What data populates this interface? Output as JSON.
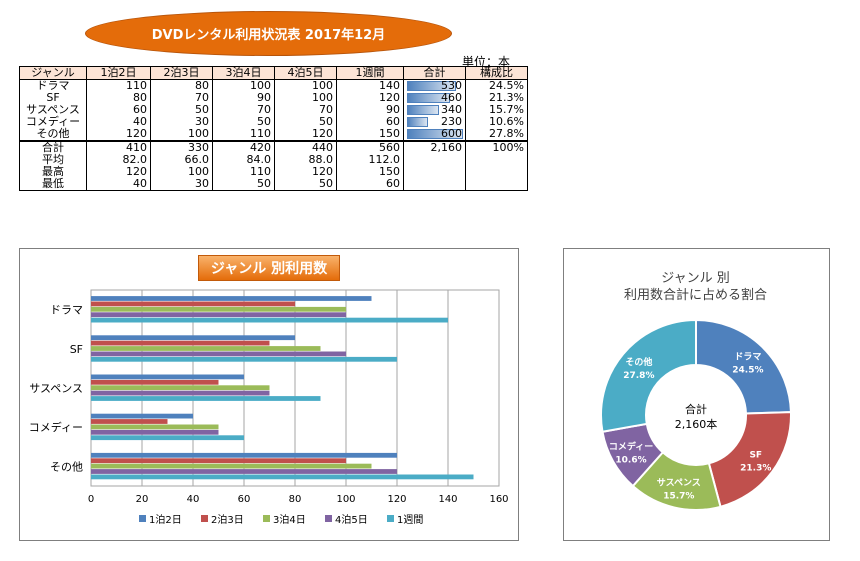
{
  "title": "DVDレンタル利用状況表 2017年12月",
  "unit_label": "単位：本",
  "table": {
    "headers": [
      "ジャンル",
      "1泊2日",
      "2泊3日",
      "3泊4日",
      "4泊5日",
      "1週間",
      "合計",
      "構成比"
    ],
    "rows": [
      {
        "genre": "ドラマ",
        "values": [
          "110",
          "80",
          "100",
          "100",
          "140"
        ],
        "total": "530",
        "total_num": 530,
        "ratio": "24.5%"
      },
      {
        "genre": "SF",
        "values": [
          "80",
          "70",
          "90",
          "100",
          "120"
        ],
        "total": "460",
        "total_num": 460,
        "ratio": "21.3%"
      },
      {
        "genre": "サスペンス",
        "values": [
          "60",
          "50",
          "70",
          "70",
          "90"
        ],
        "total": "340",
        "total_num": 340,
        "ratio": "15.7%"
      },
      {
        "genre": "コメディー",
        "values": [
          "40",
          "30",
          "50",
          "50",
          "60"
        ],
        "total": "230",
        "total_num": 230,
        "ratio": "10.6%"
      },
      {
        "genre": "その他",
        "values": [
          "120",
          "100",
          "110",
          "120",
          "150"
        ],
        "total": "600",
        "total_num": 600,
        "ratio": "27.8%"
      }
    ],
    "stats": [
      {
        "label": "合計",
        "values": [
          "410",
          "330",
          "420",
          "440",
          "560"
        ],
        "total": "2,160",
        "ratio": "100%"
      },
      {
        "label": "平均",
        "values": [
          "82.0",
          "66.0",
          "84.0",
          "88.0",
          "112.0"
        ],
        "total": "",
        "ratio": ""
      },
      {
        "label": "最高",
        "values": [
          "120",
          "100",
          "110",
          "120",
          "150"
        ],
        "total": "",
        "ratio": ""
      },
      {
        "label": "最低",
        "values": [
          "40",
          "30",
          "50",
          "50",
          "60"
        ],
        "total": "",
        "ratio": ""
      }
    ]
  },
  "chart_data": [
    {
      "type": "bar",
      "orientation": "horizontal",
      "title": "ジャンル 別利用数",
      "categories": [
        "ドラマ",
        "SF",
        "サスペンス",
        "コメディー",
        "その他"
      ],
      "series": [
        {
          "name": "1泊2日",
          "color": "#4f81bd",
          "values": [
            110,
            80,
            60,
            40,
            120
          ]
        },
        {
          "name": "2泊3日",
          "color": "#c0504d",
          "values": [
            80,
            70,
            50,
            30,
            100
          ]
        },
        {
          "name": "3泊4日",
          "color": "#9bbb59",
          "values": [
            100,
            90,
            70,
            50,
            110
          ]
        },
        {
          "name": "4泊5日",
          "color": "#8064a2",
          "values": [
            100,
            100,
            70,
            50,
            120
          ]
        },
        {
          "name": "1週間",
          "color": "#4bacc6",
          "values": [
            140,
            120,
            90,
            60,
            150
          ]
        }
      ],
      "xlim": [
        0,
        160
      ],
      "xticks": [
        "0",
        "20",
        "40",
        "60",
        "80",
        "100",
        "120",
        "140",
        "160"
      ],
      "grid": true,
      "legend": "bottom"
    },
    {
      "type": "pie",
      "variant": "donut",
      "title_line1": "ジャンル 別",
      "title_line2": "利用数合計に占める割合",
      "center_label": "合計",
      "center_value": "2,160本",
      "slices": [
        {
          "label": "ドラマ",
          "value": 24.5,
          "pct": "24.5%",
          "color": "#4f81bd"
        },
        {
          "label": "SF",
          "value": 21.3,
          "pct": "21.3%",
          "color": "#c0504d"
        },
        {
          "label": "サスペンス",
          "value": 15.7,
          "pct": "15.7%",
          "color": "#9bbb59"
        },
        {
          "label": "コメディー",
          "value": 10.6,
          "pct": "10.6%",
          "color": "#8064a2"
        },
        {
          "label": "その他",
          "value": 27.8,
          "pct": "27.8%",
          "color": "#4bacc6"
        }
      ]
    }
  ]
}
